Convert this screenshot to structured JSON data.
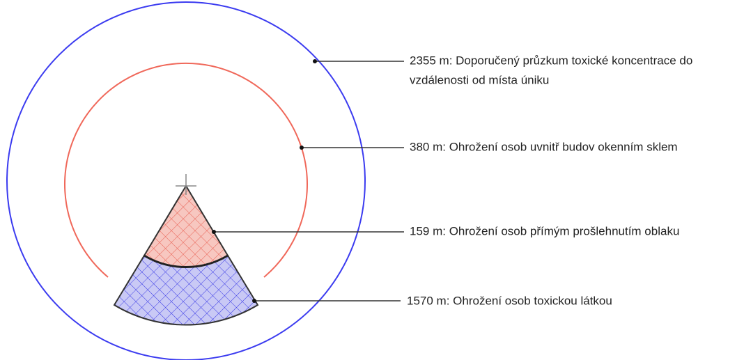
{
  "labels": [
    {
      "lines": [
        "2355 m: Doporučený průzkum toxické koncentrace do",
        "vzdálenosti od místa úniku"
      ]
    },
    {
      "lines": [
        "380 m: Ohrožení osob uvnitř budov okenním sklem"
      ]
    },
    {
      "lines": [
        "159 m: Ohrožení osob přímým prošlehnutím oblaku"
      ]
    },
    {
      "lines": [
        "1570 m: Ohrožení osob toxickou látkou"
      ]
    }
  ]
}
